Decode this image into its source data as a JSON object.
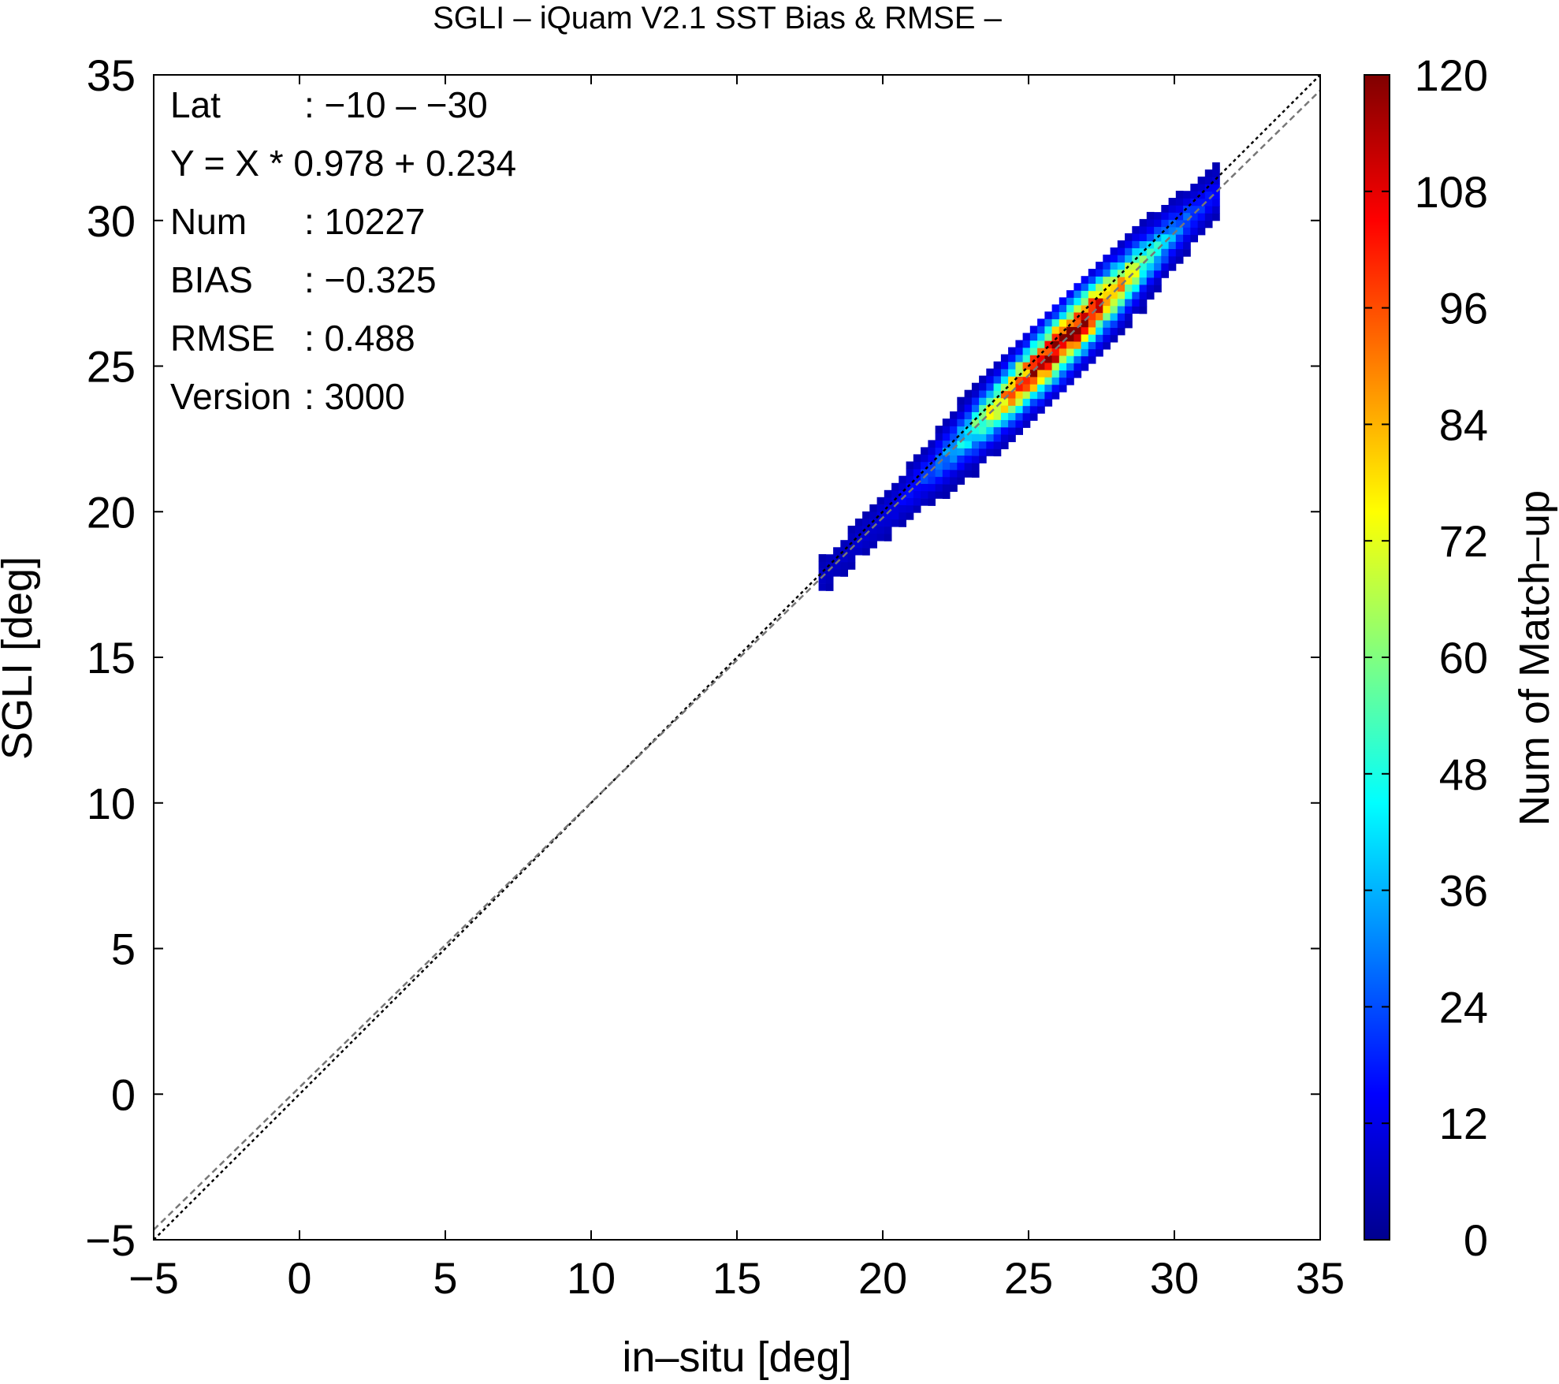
{
  "chart_data": {
    "type": "heatmap",
    "title": "SGLI – iQuam V2.1 SST Bias & RMSE  –",
    "xlabel": "in–situ [deg]",
    "ylabel": "SGLI [deg]",
    "xlim": [
      -5,
      35
    ],
    "ylim": [
      -5,
      35
    ],
    "x_ticks": [
      "−5",
      "0",
      "5",
      "10",
      "15",
      "20",
      "25",
      "30",
      "35"
    ],
    "y_ticks": [
      "−5",
      "0",
      "5",
      "10",
      "15",
      "20",
      "25",
      "30",
      "35"
    ],
    "grid": false,
    "colorbar": {
      "label": "Num of Match–up",
      "range": [
        0,
        120
      ],
      "ticks": [
        "0",
        "12",
        "24",
        "36",
        "48",
        "60",
        "72",
        "84",
        "96",
        "108",
        "120"
      ],
      "colormap": [
        "#00008f",
        "#0000ff",
        "#0080ff",
        "#00ffff",
        "#80ff80",
        "#ffff00",
        "#ff8000",
        "#ff0000",
        "#800000"
      ]
    },
    "lines": [
      {
        "kind": "one-to-one",
        "slope": 1,
        "intercept": 0,
        "color": "#000000",
        "style": "dotted"
      },
      {
        "kind": "regression",
        "slope": 0.978,
        "intercept": 0.234,
        "color": "#777777",
        "style": "dashed"
      }
    ],
    "density_band": {
      "x_range": [
        17.8,
        31.3
      ],
      "peak_x": 26.0,
      "peak_count": 110,
      "bin_size": 0.25,
      "slope": 0.978,
      "intercept": 0.234
    }
  },
  "stats": {
    "rows": [
      {
        "label": "Lat",
        "value": ": −10 – −30"
      },
      {
        "label": "Y = X * 0.978 + 0.234",
        "value": ""
      },
      {
        "label": "Num",
        "value": ": 10227"
      },
      {
        "label": "BIAS",
        "value": ": −0.325"
      },
      {
        "label": "RMSE",
        "value": ": 0.488"
      },
      {
        "label": "Version",
        "value": ": 3000"
      }
    ]
  }
}
